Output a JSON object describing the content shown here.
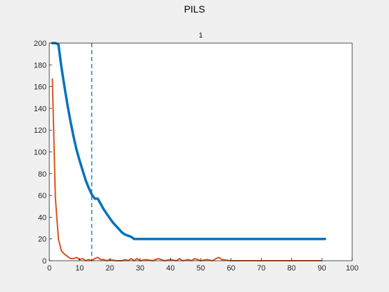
{
  "figure": {
    "title": "PILS"
  },
  "chart_data": {
    "type": "line",
    "title": "1",
    "xlabel": "",
    "ylabel": "",
    "xlim": [
      0,
      100
    ],
    "ylim": [
      0,
      200
    ],
    "xticks": [
      0,
      10,
      20,
      30,
      40,
      50,
      60,
      70,
      80,
      90,
      100
    ],
    "yticks": [
      0,
      20,
      40,
      60,
      80,
      100,
      120,
      140,
      160,
      180,
      200
    ],
    "grid": false,
    "legend": "none",
    "colors": {
      "series1": "#0072bd",
      "series2": "#d95319",
      "marker": "#0072bd",
      "axes": "#262626",
      "background": "#ffffff"
    },
    "reference_line": {
      "x": 14,
      "style": "dashed"
    },
    "series": [
      {
        "x": [
          1,
          2,
          3,
          4,
          5,
          6,
          7,
          8,
          9,
          10,
          11,
          12,
          13,
          14,
          15,
          16,
          17,
          18,
          19,
          20,
          21,
          22,
          23,
          24,
          25,
          26,
          27,
          28,
          29,
          35,
          45,
          55,
          65,
          75,
          85,
          91
        ],
        "values": [
          200,
          200,
          199,
          178,
          160,
          143,
          128,
          114,
          102,
          92,
          83,
          74,
          67,
          61,
          57,
          57,
          52,
          47,
          43,
          39,
          35,
          32,
          29,
          26,
          24,
          23,
          22,
          20,
          20,
          20,
          20,
          20,
          20,
          20,
          20,
          20
        ]
      },
      {
        "x": [
          1,
          2,
          3,
          4,
          5,
          6,
          7,
          8,
          9,
          10,
          11,
          12,
          13,
          14,
          15,
          16,
          17,
          18,
          19,
          20,
          22,
          24,
          25,
          26,
          27,
          28,
          29,
          30,
          32,
          34,
          36,
          38,
          40,
          42,
          43,
          44,
          46,
          47,
          48,
          50,
          52,
          54,
          55,
          56,
          57,
          60,
          70,
          80,
          90
        ],
        "values": [
          167,
          58,
          20,
          9,
          6,
          4,
          2,
          2,
          3,
          1,
          2,
          0,
          1,
          0,
          2,
          3,
          1,
          1,
          0,
          1,
          0,
          0,
          1,
          0,
          2,
          0,
          2,
          0,
          1,
          0,
          2,
          0,
          1,
          0,
          2,
          0,
          1,
          0,
          2,
          0,
          1,
          0,
          2,
          3,
          1,
          0,
          0,
          0,
          0
        ]
      }
    ]
  }
}
